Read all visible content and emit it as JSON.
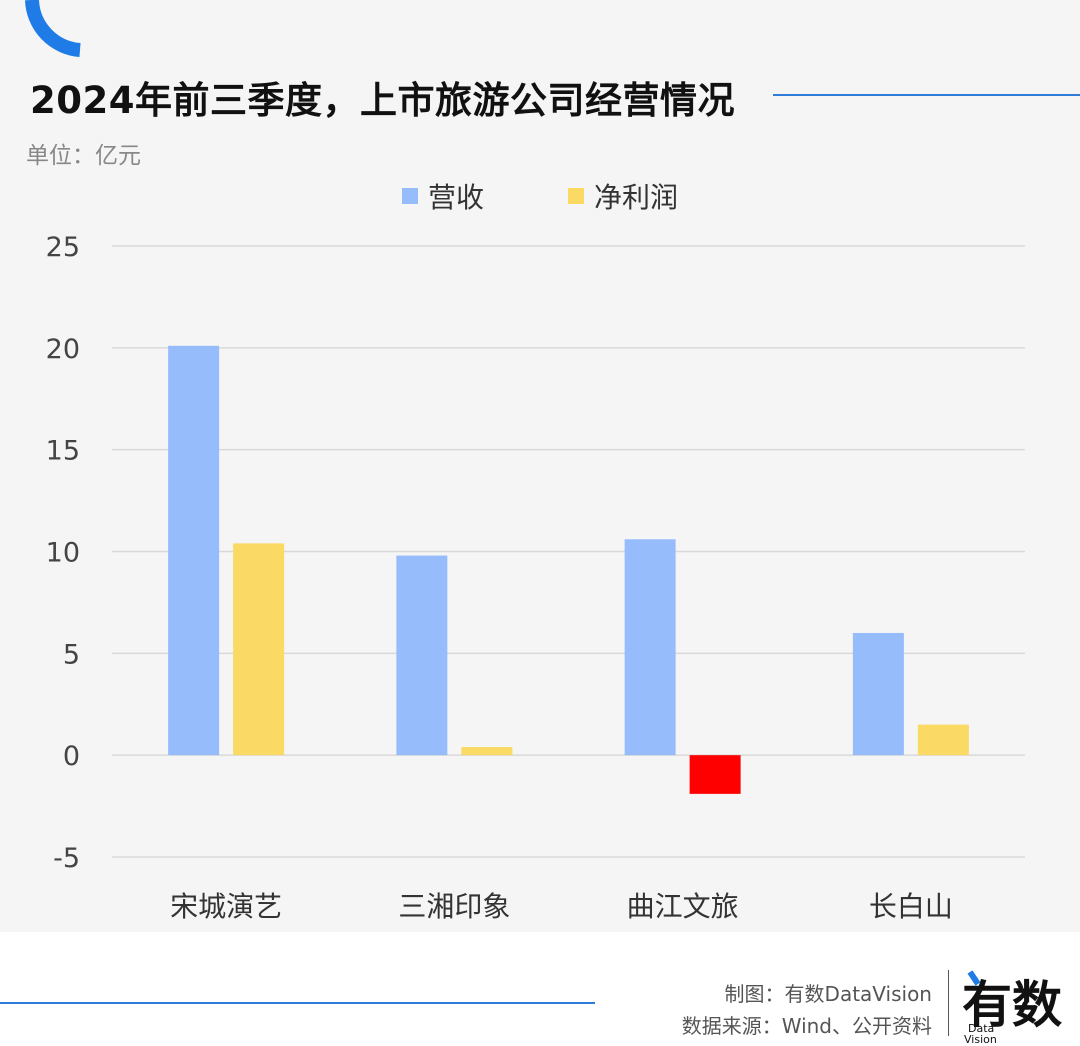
{
  "title": "2024年前三季度，上市旅游公司经营情况",
  "unit": "单位：亿元",
  "credits": {
    "made_by": "制图：有数DataVision",
    "source": "数据来源：Wind、公开资料"
  },
  "logo": {
    "main": "有数",
    "sub1": "Data",
    "sub2": "Vision"
  },
  "colors": {
    "revenue": "#96bcfc",
    "profit": "#fad965",
    "negative": "#ff0000",
    "accent": "#2e7bd8"
  },
  "chart_data": {
    "type": "bar",
    "categories": [
      "宋城演艺",
      "三湘印象",
      "曲江文旅",
      "长白山"
    ],
    "series": [
      {
        "name": "营收",
        "values": [
          20.1,
          9.8,
          10.6,
          6.0
        ]
      },
      {
        "name": "净利润",
        "values": [
          10.4,
          0.4,
          -1.9,
          1.5
        ]
      }
    ],
    "ylim": [
      -5,
      25
    ],
    "yticks": [
      25,
      20,
      15,
      10,
      5,
      0,
      -5
    ],
    "grid": true,
    "legend": "top-center"
  }
}
